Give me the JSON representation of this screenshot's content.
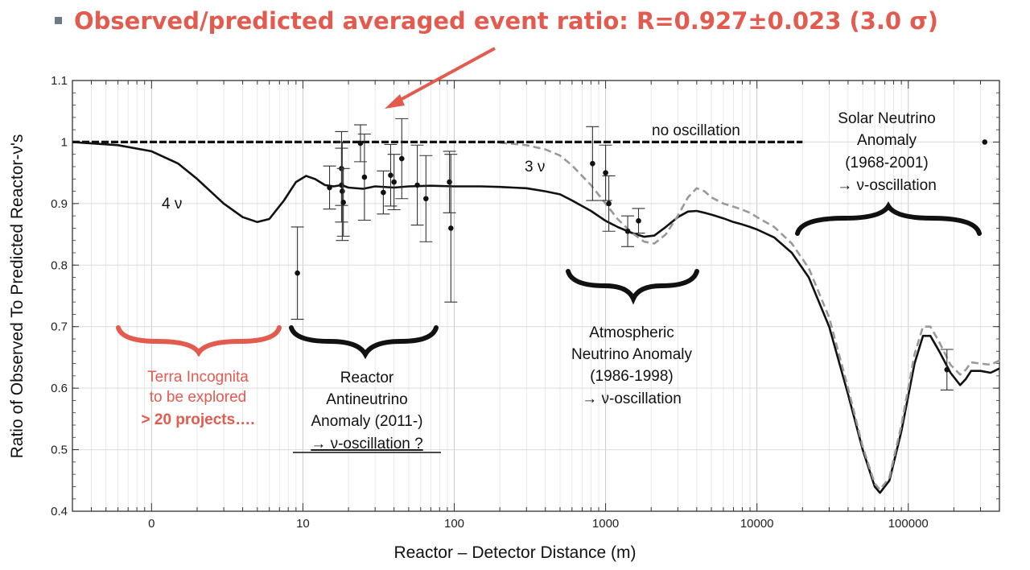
{
  "slide": {
    "bullet_color": "#6b7a86",
    "headline": "Observed/predicted averaged event ratio: R=0.927±0.023 (3.0 σ)",
    "accent_color": "#e35a4e"
  },
  "chart_data": {
    "type": "scatter",
    "title": "",
    "xlabel": "Reactor – Detector Distance (m)",
    "ylabel": "Ratio of Observed To Predicted Reactor-ν's",
    "x_scale": "log",
    "x_ticks": [
      "0",
      "10",
      "100",
      "1000",
      "10000",
      "100000"
    ],
    "x_tick_values": [
      1,
      10,
      100,
      1000,
      10000,
      100000
    ],
    "xlim": [
      0.3,
      400000
    ],
    "ylim": [
      0.4,
      1.1
    ],
    "y_ticks": [
      "0.4",
      "0.5",
      "0.6",
      "0.7",
      "0.8",
      "0.9",
      "1",
      "1.1"
    ],
    "y_tick_values": [
      0.4,
      0.5,
      0.6,
      0.7,
      0.8,
      0.9,
      1.0,
      1.1
    ],
    "grid": true,
    "series": [
      {
        "kind": "points",
        "points": [
          {
            "x": 9.2,
            "y": 0.787,
            "err": 0.075
          },
          {
            "x": 15,
            "y": 0.926,
            "err": 0.035
          },
          {
            "x": 18,
            "y": 0.957,
            "err": 0.06
          },
          {
            "x": 18,
            "y": 0.93,
            "err": 0.06
          },
          {
            "x": 18.2,
            "y": 0.92,
            "err": 0.08
          },
          {
            "x": 18.5,
            "y": 0.902,
            "err": 0.055
          },
          {
            "x": 24,
            "y": 0.998,
            "err": 0.03
          },
          {
            "x": 25.5,
            "y": 0.943,
            "err": 0.07
          },
          {
            "x": 34,
            "y": 0.918,
            "err": 0.035
          },
          {
            "x": 38,
            "y": 0.946,
            "err": 0.05
          },
          {
            "x": 40,
            "y": 0.935,
            "err": 0.045
          },
          {
            "x": 45,
            "y": 0.973,
            "err": 0.065
          },
          {
            "x": 57,
            "y": 0.93,
            "err": 0.065
          },
          {
            "x": 65,
            "y": 0.908,
            "err": 0.07
          },
          {
            "x": 93,
            "y": 0.935,
            "err": 0.05
          },
          {
            "x": 95,
            "y": 0.86,
            "err": 0.12
          },
          {
            "x": 820,
            "y": 0.965,
            "err": 0.06
          },
          {
            "x": 1000,
            "y": 0.95,
            "err": 0.045
          },
          {
            "x": 1050,
            "y": 0.9,
            "err": 0.045
          },
          {
            "x": 1400,
            "y": 0.855,
            "err": 0.025
          },
          {
            "x": 1650,
            "y": 0.872,
            "err": 0.02
          },
          {
            "x": 180000,
            "y": 0.63,
            "err": 0.033
          },
          {
            "x": 320000,
            "y": 1.0,
            "err": 0
          }
        ]
      },
      {
        "name": "4 ν",
        "kind": "curve",
        "style": "solid",
        "color": "#111111",
        "x": [
          0.3,
          0.6,
          1,
          1.5,
          2,
          3,
          4,
          5,
          6,
          7.5,
          9,
          10.5,
          12,
          14,
          16,
          18,
          20,
          25,
          30,
          40,
          50,
          70,
          100,
          150,
          200,
          300,
          400,
          500,
          600,
          800,
          1000,
          1200,
          1500,
          1800,
          2100,
          2500,
          3000,
          3500,
          4000,
          4500,
          5000,
          6000,
          7000,
          8000,
          9000,
          10000,
          13000,
          17000,
          22000,
          30000,
          40000,
          50000,
          60000,
          65000,
          75000,
          90000,
          110000,
          125000,
          140000,
          160000,
          190000,
          220000,
          240000,
          260000,
          300000,
          350000,
          400000
        ],
        "y": [
          1.0,
          0.995,
          0.985,
          0.965,
          0.94,
          0.9,
          0.878,
          0.87,
          0.875,
          0.905,
          0.935,
          0.945,
          0.94,
          0.93,
          0.928,
          0.93,
          0.926,
          0.924,
          0.928,
          0.926,
          0.928,
          0.929,
          0.928,
          0.928,
          0.927,
          0.925,
          0.92,
          0.915,
          0.905,
          0.888,
          0.872,
          0.862,
          0.852,
          0.846,
          0.848,
          0.862,
          0.878,
          0.887,
          0.888,
          0.885,
          0.882,
          0.876,
          0.87,
          0.866,
          0.862,
          0.858,
          0.845,
          0.82,
          0.78,
          0.7,
          0.59,
          0.5,
          0.44,
          0.43,
          0.45,
          0.53,
          0.64,
          0.685,
          0.685,
          0.66,
          0.625,
          0.605,
          0.615,
          0.628,
          0.628,
          0.625,
          0.632
        ]
      },
      {
        "name": "3 ν",
        "kind": "curve",
        "style": "dashed",
        "color": "#999999",
        "x": [
          200,
          300,
          400,
          500,
          600,
          800,
          1000,
          1200,
          1500,
          1800,
          2100,
          2500,
          3000,
          3500,
          4000,
          4500,
          5000,
          6000,
          7000,
          8000,
          9000,
          10000,
          13000,
          17000,
          22000,
          30000,
          40000,
          50000,
          60000,
          65000,
          75000,
          90000,
          110000,
          125000,
          140000,
          160000,
          190000,
          220000,
          240000,
          260000,
          300000,
          350000,
          400000
        ],
        "y": [
          0.999,
          0.995,
          0.988,
          0.978,
          0.962,
          0.93,
          0.9,
          0.875,
          0.852,
          0.838,
          0.835,
          0.85,
          0.88,
          0.91,
          0.925,
          0.92,
          0.91,
          0.9,
          0.895,
          0.89,
          0.885,
          0.878,
          0.862,
          0.835,
          0.795,
          0.715,
          0.6,
          0.505,
          0.445,
          0.435,
          0.455,
          0.54,
          0.655,
          0.7,
          0.7,
          0.675,
          0.638,
          0.622,
          0.63,
          0.642,
          0.64,
          0.638,
          0.645
        ]
      },
      {
        "name": "no oscillation",
        "kind": "curve",
        "style": "dashed-bold",
        "color": "#111111",
        "x": [
          0.3,
          20000
        ],
        "y": [
          1.0,
          1.0
        ]
      }
    ],
    "annotations": {
      "label_4nu": "4 ν",
      "label_3nu": "3 ν",
      "label_no_osc": "no oscillation",
      "terra": [
        "Terra Incognita",
        "to be explored",
        "> 20 projects…."
      ],
      "reactor": [
        "Reactor",
        "Antineutrino",
        "Anomaly (2011-)",
        "→ ν-oscillation ?"
      ],
      "atmospheric": [
        "Atmospheric",
        "Neutrino Anomaly",
        "(1986-1998)",
        "→ ν-oscillation"
      ],
      "solar": [
        "Solar Neutrino",
        "Anomaly",
        "(1968-2001)",
        "→ ν-oscillation"
      ]
    }
  }
}
